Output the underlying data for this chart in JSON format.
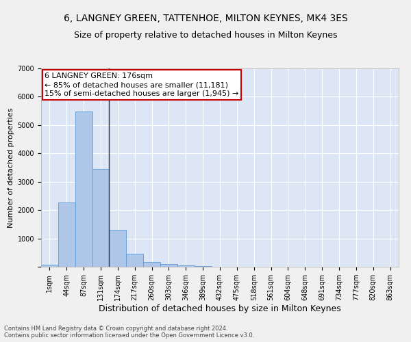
{
  "title": "6, LANGNEY GREEN, TATTENHOE, MILTON KEYNES, MK4 3ES",
  "subtitle": "Size of property relative to detached houses in Milton Keynes",
  "xlabel": "Distribution of detached houses by size in Milton Keynes",
  "ylabel": "Number of detached properties",
  "footer_line1": "Contains HM Land Registry data © Crown copyright and database right 2024.",
  "footer_line2": "Contains public sector information licensed under the Open Government Licence v3.0.",
  "categories": [
    "1sqm",
    "44sqm",
    "87sqm",
    "131sqm",
    "174sqm",
    "217sqm",
    "260sqm",
    "303sqm",
    "346sqm",
    "389sqm",
    "432sqm",
    "475sqm",
    "518sqm",
    "561sqm",
    "604sqm",
    "648sqm",
    "691sqm",
    "734sqm",
    "777sqm",
    "820sqm",
    "863sqm"
  ],
  "values": [
    80,
    2270,
    5480,
    3450,
    1310,
    470,
    160,
    95,
    60,
    35,
    0,
    0,
    0,
    0,
    0,
    0,
    0,
    0,
    0,
    0,
    0
  ],
  "bar_color": "#aec6e8",
  "bar_edge_color": "#5b9bd5",
  "vline_color": "#333333",
  "vline_x_index": 3.5,
  "annotation_text": "6 LANGNEY GREEN: 176sqm\n← 85% of detached houses are smaller (11,181)\n15% of semi-detached houses are larger (1,945) →",
  "annotation_box_facecolor": "#ffffff",
  "annotation_box_edgecolor": "#cc0000",
  "ylim": [
    0,
    7000
  ],
  "yticks": [
    0,
    1000,
    2000,
    3000,
    4000,
    5000,
    6000,
    7000
  ],
  "background_color": "#dce6f5",
  "grid_color": "#ffffff",
  "fig_facecolor": "#f0f0f0",
  "title_fontsize": 10,
  "subtitle_fontsize": 9,
  "xlabel_fontsize": 9,
  "ylabel_fontsize": 8,
  "tick_fontsize": 7,
  "annotation_fontsize": 8,
  "footer_fontsize": 6
}
